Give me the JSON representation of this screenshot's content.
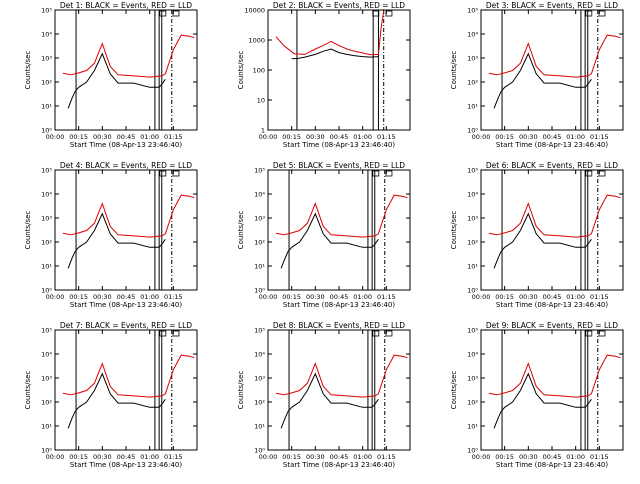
{
  "colors": {
    "events": "#000000",
    "lld": "#dd0000",
    "axes": "#000000",
    "background": "#ffffff"
  },
  "shared": {
    "x_ticks": [
      "00:00",
      "00:15",
      "00:30",
      "00:45",
      "01:00",
      "01:15"
    ],
    "xlabel": "Start Time (08-Apr-13 23:46:40)",
    "ylabel": "Counts/sec"
  },
  "chart_data": [
    {
      "type": "line",
      "title": "Det 1: BLACK = Events, RED = LLD",
      "xlabel": "Start Time (08-Apr-13 23:46:40)",
      "ylabel": "Counts/sec",
      "xlim": [
        0,
        5400
      ],
      "ylim": [
        1,
        100000
      ],
      "yscale": "log",
      "y_ticks": [
        "10⁰",
        "10¹",
        "10²",
        "10³",
        "10⁴",
        "10⁵"
      ],
      "vlines": [
        {
          "x": 800,
          "style": "solid"
        },
        {
          "x": 3800,
          "style": "solid"
        },
        {
          "x": 3960,
          "style": "solid"
        },
        {
          "x": 4060,
          "style": "solid"
        },
        {
          "x": 4440,
          "style": "dashdot"
        }
      ],
      "series": [
        {
          "name": "Events",
          "x": [
            500,
            640,
            760,
            900,
            1200,
            1500,
            1800,
            2100,
            2400,
            3000,
            3600,
            3960,
            4060,
            4200
          ],
          "values": [
            8,
            20,
            40,
            60,
            100,
            300,
            1500,
            220,
            90,
            90,
            60,
            60,
            80,
            130
          ]
        },
        {
          "name": "LLD",
          "x": [
            300,
            600,
            900,
            1200,
            1500,
            1800,
            2100,
            2400,
            3000,
            3600,
            4060,
            4200,
            4500,
            4800,
            5100,
            5300
          ],
          "values": [
            230,
            200,
            240,
            300,
            600,
            4000,
            450,
            200,
            180,
            160,
            180,
            220,
            2200,
            9000,
            8000,
            7000
          ]
        }
      ]
    },
    {
      "type": "line",
      "title": "Det 2: BLACK = Events, RED = LLD",
      "xlabel": "Start Time (08-Apr-13 23:46:40)",
      "ylabel": "Counts/sec",
      "xlim": [
        0,
        5400
      ],
      "ylim": [
        1,
        10000
      ],
      "yscale": "log",
      "y_ticks": [
        "1",
        "10",
        "100",
        "1000",
        "10000"
      ],
      "vlines": [
        {
          "x": 1100,
          "style": "solid"
        },
        {
          "x": 4000,
          "style": "solid"
        },
        {
          "x": 4200,
          "style": "solid"
        },
        {
          "x": 4400,
          "style": "dashdot"
        }
      ],
      "series": [
        {
          "name": "Events",
          "x": [
            900,
            1100,
            1400,
            1800,
            2100,
            2400,
            2700,
            3000,
            3300,
            3600,
            3900,
            4200
          ],
          "values": [
            240,
            240,
            270,
            330,
            420,
            500,
            380,
            330,
            300,
            280,
            270,
            280
          ]
        },
        {
          "name": "LLD",
          "x": [
            300,
            600,
            1000,
            1400,
            1800,
            2100,
            2400,
            2700,
            3000,
            3300,
            3600,
            3900,
            4200,
            4300,
            4400
          ],
          "values": [
            1300,
            650,
            350,
            330,
            500,
            650,
            900,
            650,
            500,
            420,
            370,
            320,
            330,
            2500,
            9000
          ]
        }
      ]
    },
    {
      "type": "line",
      "title": "Det 3: BLACK = Events, RED = LLD",
      "xlabel": "Start Time (08-Apr-13 23:46:40)",
      "ylabel": "Counts/sec",
      "xlim": [
        0,
        5400
      ],
      "ylim": [
        1,
        100000
      ],
      "yscale": "log",
      "y_ticks": [
        "10⁰",
        "10¹",
        "10²",
        "10³",
        "10⁴",
        "10⁵"
      ],
      "vlines": [
        {
          "x": 800,
          "style": "solid"
        },
        {
          "x": 3800,
          "style": "solid"
        },
        {
          "x": 3960,
          "style": "solid"
        },
        {
          "x": 4060,
          "style": "solid"
        },
        {
          "x": 4440,
          "style": "dashdot"
        }
      ],
      "series": [
        {
          "name": "Events",
          "x": [
            500,
            640,
            760,
            900,
            1200,
            1500,
            1800,
            2100,
            2400,
            3000,
            3600,
            3960,
            4060,
            4200
          ],
          "values": [
            8,
            20,
            40,
            60,
            100,
            300,
            1500,
            220,
            90,
            90,
            60,
            60,
            80,
            130
          ]
        },
        {
          "name": "LLD",
          "x": [
            300,
            600,
            900,
            1200,
            1500,
            1800,
            2100,
            2400,
            3000,
            3600,
            4060,
            4200,
            4500,
            4800,
            5100,
            5300
          ],
          "values": [
            230,
            200,
            240,
            300,
            600,
            4000,
            450,
            200,
            180,
            160,
            180,
            220,
            2200,
            9000,
            8000,
            7000
          ]
        }
      ]
    },
    {
      "type": "line",
      "title": "Det 4: BLACK = Events, RED = LLD",
      "xlabel": "Start Time (08-Apr-13 23:46:40)",
      "ylabel": "Counts/sec",
      "xlim": [
        0,
        5400
      ],
      "ylim": [
        1,
        100000
      ],
      "yscale": "log",
      "y_ticks": [
        "10⁰",
        "10¹",
        "10²",
        "10³",
        "10⁴",
        "10⁵"
      ],
      "vlines": [
        {
          "x": 800,
          "style": "solid"
        },
        {
          "x": 3800,
          "style": "solid"
        },
        {
          "x": 3960,
          "style": "solid"
        },
        {
          "x": 4060,
          "style": "solid"
        },
        {
          "x": 4440,
          "style": "dashdot"
        }
      ],
      "series": [
        {
          "name": "Events",
          "x": [
            500,
            640,
            760,
            900,
            1200,
            1500,
            1800,
            2100,
            2400,
            3000,
            3600,
            3960,
            4060,
            4200
          ],
          "values": [
            8,
            20,
            40,
            60,
            100,
            300,
            1500,
            220,
            90,
            90,
            60,
            60,
            80,
            130
          ]
        },
        {
          "name": "LLD",
          "x": [
            300,
            600,
            900,
            1200,
            1500,
            1800,
            2100,
            2400,
            3000,
            3600,
            4060,
            4200,
            4500,
            4800,
            5100,
            5300
          ],
          "values": [
            230,
            200,
            240,
            300,
            600,
            4000,
            450,
            200,
            180,
            160,
            180,
            220,
            2200,
            9000,
            8000,
            7000
          ]
        }
      ]
    },
    {
      "type": "line",
      "title": "Det 5: BLACK = Events, RED = LLD",
      "xlabel": "Start Time (08-Apr-13 23:46:40)",
      "ylabel": "Counts/sec",
      "xlim": [
        0,
        5400
      ],
      "ylim": [
        1,
        100000
      ],
      "yscale": "log",
      "y_ticks": [
        "10⁰",
        "10¹",
        "10²",
        "10³",
        "10⁴",
        "10⁵"
      ],
      "vlines": [
        {
          "x": 800,
          "style": "solid"
        },
        {
          "x": 3800,
          "style": "solid"
        },
        {
          "x": 3960,
          "style": "solid"
        },
        {
          "x": 4060,
          "style": "solid"
        },
        {
          "x": 4440,
          "style": "dashdot"
        }
      ],
      "series": [
        {
          "name": "Events",
          "x": [
            500,
            640,
            760,
            900,
            1200,
            1500,
            1800,
            2100,
            2400,
            3000,
            3600,
            3960,
            4060,
            4200
          ],
          "values": [
            8,
            20,
            40,
            60,
            100,
            300,
            1500,
            220,
            90,
            90,
            60,
            60,
            80,
            130
          ]
        },
        {
          "name": "LLD",
          "x": [
            300,
            600,
            900,
            1200,
            1500,
            1800,
            2100,
            2400,
            3000,
            3600,
            4060,
            4200,
            4500,
            4800,
            5100,
            5300
          ],
          "values": [
            230,
            200,
            240,
            300,
            600,
            4000,
            450,
            200,
            180,
            160,
            180,
            220,
            2200,
            9000,
            8000,
            7000
          ]
        }
      ]
    },
    {
      "type": "line",
      "title": "Det 6: BLACK = Events, RED = LLD",
      "xlabel": "Start Time (08-Apr-13 23:46:40)",
      "ylabel": "Counts/sec",
      "xlim": [
        0,
        5400
      ],
      "ylim": [
        1,
        100000
      ],
      "yscale": "log",
      "y_ticks": [
        "10⁰",
        "10¹",
        "10²",
        "10³",
        "10⁴",
        "10⁵"
      ],
      "vlines": [
        {
          "x": 800,
          "style": "solid"
        },
        {
          "x": 3800,
          "style": "solid"
        },
        {
          "x": 3960,
          "style": "solid"
        },
        {
          "x": 4060,
          "style": "solid"
        },
        {
          "x": 4440,
          "style": "dashdot"
        }
      ],
      "series": [
        {
          "name": "Events",
          "x": [
            500,
            640,
            760,
            900,
            1200,
            1500,
            1800,
            2100,
            2400,
            3000,
            3600,
            3960,
            4060,
            4200
          ],
          "values": [
            8,
            20,
            40,
            60,
            100,
            300,
            1500,
            220,
            90,
            90,
            60,
            60,
            80,
            130
          ]
        },
        {
          "name": "LLD",
          "x": [
            300,
            600,
            900,
            1200,
            1500,
            1800,
            2100,
            2400,
            3000,
            3600,
            4060,
            4200,
            4500,
            4800,
            5100,
            5300
          ],
          "values": [
            230,
            200,
            240,
            300,
            600,
            4000,
            450,
            200,
            180,
            160,
            180,
            220,
            2200,
            9000,
            8000,
            7000
          ]
        }
      ]
    },
    {
      "type": "line",
      "title": "Det 7: BLACK = Events, RED = LLD",
      "xlabel": "Start Time (08-Apr-13 23:46:40)",
      "ylabel": "Counts/sec",
      "xlim": [
        0,
        5400
      ],
      "ylim": [
        1,
        100000
      ],
      "yscale": "log",
      "y_ticks": [
        "10⁰",
        "10¹",
        "10²",
        "10³",
        "10⁴",
        "10⁵"
      ],
      "vlines": [
        {
          "x": 800,
          "style": "solid"
        },
        {
          "x": 3800,
          "style": "solid"
        },
        {
          "x": 3960,
          "style": "solid"
        },
        {
          "x": 4060,
          "style": "solid"
        },
        {
          "x": 4440,
          "style": "dashdot"
        }
      ],
      "series": [
        {
          "name": "Events",
          "x": [
            500,
            640,
            760,
            900,
            1200,
            1500,
            1800,
            2100,
            2400,
            3000,
            3600,
            3960,
            4060,
            4200
          ],
          "values": [
            8,
            20,
            40,
            60,
            100,
            300,
            1500,
            220,
            90,
            90,
            60,
            60,
            80,
            130
          ]
        },
        {
          "name": "LLD",
          "x": [
            300,
            600,
            900,
            1200,
            1500,
            1800,
            2100,
            2400,
            3000,
            3600,
            4060,
            4200,
            4500,
            4800,
            5100,
            5300
          ],
          "values": [
            230,
            200,
            240,
            300,
            600,
            4000,
            450,
            200,
            180,
            160,
            180,
            220,
            2200,
            9000,
            8000,
            7000
          ]
        }
      ]
    },
    {
      "type": "line",
      "title": "Det 8: BLACK = Events, RED = LLD",
      "xlabel": "Start Time (08-Apr-13 23:46:40)",
      "ylabel": "Counts/sec",
      "xlim": [
        0,
        5400
      ],
      "ylim": [
        1,
        100000
      ],
      "yscale": "log",
      "y_ticks": [
        "10⁰",
        "10¹",
        "10²",
        "10³",
        "10⁴",
        "10⁵"
      ],
      "vlines": [
        {
          "x": 800,
          "style": "solid"
        },
        {
          "x": 3800,
          "style": "solid"
        },
        {
          "x": 3960,
          "style": "solid"
        },
        {
          "x": 4060,
          "style": "solid"
        },
        {
          "x": 4440,
          "style": "dashdot"
        }
      ],
      "series": [
        {
          "name": "Events",
          "x": [
            500,
            640,
            760,
            900,
            1200,
            1500,
            1800,
            2100,
            2400,
            3000,
            3600,
            3960,
            4060,
            4200
          ],
          "values": [
            8,
            20,
            40,
            60,
            100,
            300,
            1500,
            220,
            90,
            90,
            60,
            60,
            80,
            130
          ]
        },
        {
          "name": "LLD",
          "x": [
            300,
            600,
            900,
            1200,
            1500,
            1800,
            2100,
            2400,
            3000,
            3600,
            4060,
            4200,
            4500,
            4800,
            5100,
            5300
          ],
          "values": [
            230,
            200,
            240,
            300,
            600,
            4000,
            450,
            200,
            180,
            160,
            180,
            220,
            2200,
            9000,
            8000,
            7000
          ]
        }
      ]
    },
    {
      "type": "line",
      "title": "Det 9: BLACK = Events, RED = LLD",
      "xlabel": "Start Time (08-Apr-13 23:46:40)",
      "ylabel": "Counts/sec",
      "xlim": [
        0,
        5400
      ],
      "ylim": [
        1,
        100000
      ],
      "yscale": "log",
      "y_ticks": [
        "10⁰",
        "10¹",
        "10²",
        "10³",
        "10⁴",
        "10⁵"
      ],
      "vlines": [
        {
          "x": 800,
          "style": "solid"
        },
        {
          "x": 3800,
          "style": "solid"
        },
        {
          "x": 3960,
          "style": "solid"
        },
        {
          "x": 4060,
          "style": "solid"
        },
        {
          "x": 4440,
          "style": "dashdot"
        }
      ],
      "series": [
        {
          "name": "Events",
          "x": [
            500,
            640,
            760,
            900,
            1200,
            1500,
            1800,
            2100,
            2400,
            3000,
            3600,
            3960,
            4060,
            4200
          ],
          "values": [
            8,
            20,
            40,
            60,
            100,
            300,
            1500,
            220,
            90,
            90,
            60,
            60,
            80,
            130
          ]
        },
        {
          "name": "LLD",
          "x": [
            300,
            600,
            900,
            1200,
            1500,
            1800,
            2100,
            2400,
            3000,
            3600,
            4060,
            4200,
            4500,
            4800,
            5100,
            5300
          ],
          "values": [
            230,
            200,
            240,
            300,
            600,
            4000,
            450,
            200,
            180,
            160,
            180,
            220,
            2200,
            9000,
            8000,
            7000
          ]
        }
      ]
    }
  ]
}
